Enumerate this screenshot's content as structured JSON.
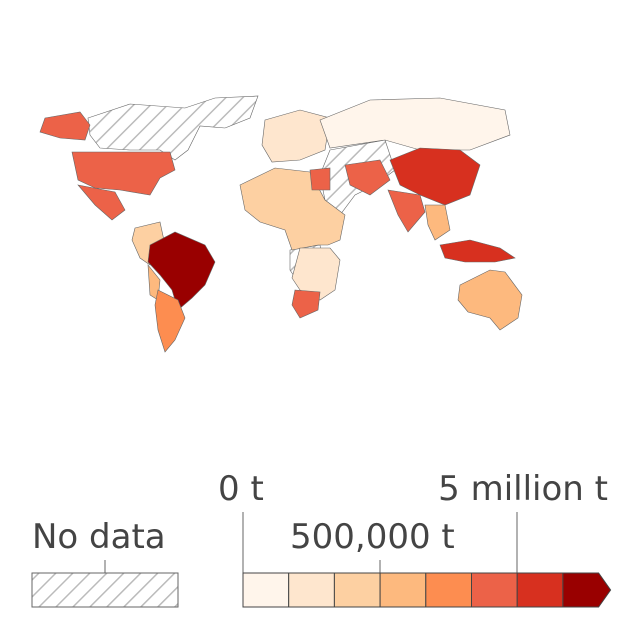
{
  "legend": {
    "no_data_label": "No data",
    "scale_labels": [
      "0 t",
      "500,000 t",
      "5 million t"
    ],
    "colors": [
      "#fff5eb",
      "#fee6ce",
      "#fdd0a2",
      "#fdb97e",
      "#fd8d50",
      "#ec6248",
      "#d7301f",
      "#990000"
    ]
  }
}
